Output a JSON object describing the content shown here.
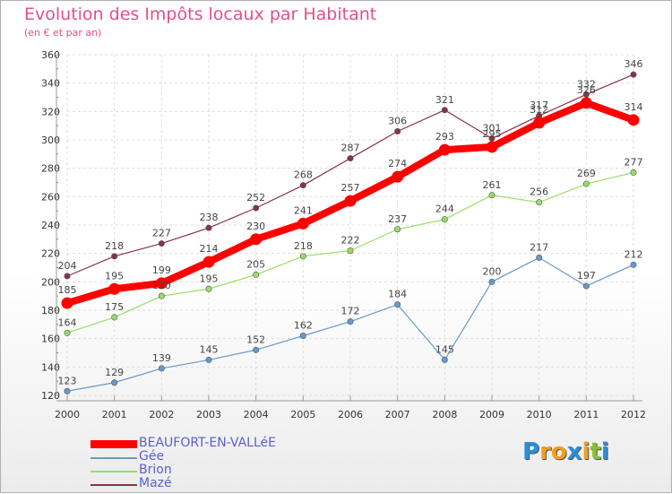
{
  "header": {
    "title": "Evolution des Impôts locaux par Habitant",
    "subtitle": "(en € et par an)"
  },
  "chart_data": {
    "type": "line",
    "title": "Evolution des Impôts locaux par Habitant",
    "subtitle": "(en € et par an)",
    "xlabel": "",
    "ylabel": "",
    "x": [
      "2000",
      "2001",
      "2002",
      "2003",
      "2004",
      "2005",
      "2006",
      "2007",
      "2008",
      "2009",
      "2010",
      "2011",
      "2012"
    ],
    "ylim": [
      120,
      360
    ],
    "yticks": [
      120,
      140,
      160,
      180,
      200,
      220,
      240,
      260,
      280,
      300,
      320,
      340,
      360
    ],
    "grid": true,
    "legend_position": "bottom-left",
    "series": [
      {
        "name": "BEAUFORT-EN-VALLéE",
        "color": "#ff0000",
        "width": 8,
        "dot": 6.5,
        "values": [
          185,
          195,
          199,
          214,
          230,
          241,
          257,
          274,
          293,
          295,
          312,
          326,
          314
        ]
      },
      {
        "name": "Gée",
        "color": "#6699cc",
        "width": 1.2,
        "dot": 3.2,
        "values": [
          123,
          129,
          139,
          145,
          152,
          162,
          172,
          184,
          145,
          200,
          217,
          197,
          212
        ]
      },
      {
        "name": "Brion",
        "color": "#99dd66",
        "width": 1.2,
        "dot": 3.2,
        "values": [
          164,
          175,
          190,
          195,
          205,
          218,
          222,
          237,
          244,
          261,
          256,
          269,
          277
        ]
      },
      {
        "name": "Mazé",
        "color": "#883344",
        "width": 1.2,
        "dot": 3.2,
        "values": [
          204,
          218,
          227,
          238,
          252,
          268,
          287,
          306,
          321,
          301,
          317,
          332,
          346
        ]
      }
    ]
  },
  "logo": {
    "letters": [
      "P",
      "r",
      "o",
      "x",
      "i",
      "t",
      "i"
    ],
    "colors": [
      "#2a8fd8",
      "#f0a020",
      "#f0a020",
      "#2a8fd8",
      "#f0a020",
      "#88c030",
      "#2a8fd8"
    ]
  }
}
